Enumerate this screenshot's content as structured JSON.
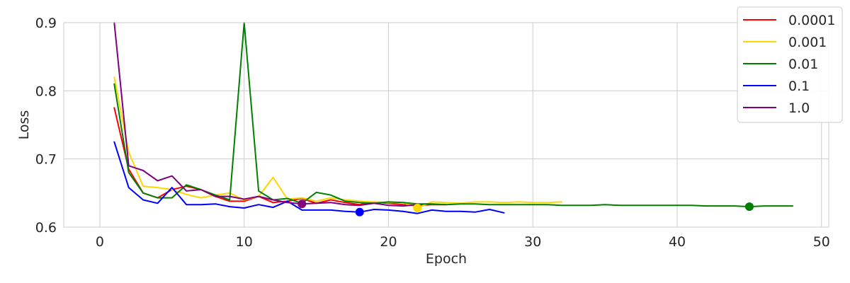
{
  "chart_data": {
    "type": "line",
    "xlabel": "Epoch",
    "ylabel": "Loss",
    "xlim": [
      -2.5,
      50.5
    ],
    "ylim": [
      0.6,
      0.9
    ],
    "xticks": [
      0,
      10,
      20,
      30,
      40,
      50
    ],
    "yticks": [
      0.6,
      0.7,
      0.8,
      0.9
    ],
    "xtick_labels": [
      "0",
      "10",
      "20",
      "30",
      "40",
      "50"
    ],
    "ytick_labels": [
      "0.6",
      "0.7",
      "0.8",
      "0.9"
    ],
    "grid": true,
    "legend_position": "top-right",
    "series": [
      {
        "name": "0.0001",
        "color": "#ff0000",
        "x": [
          1,
          2,
          3,
          4,
          5,
          6,
          7,
          8,
          9,
          10,
          11,
          12,
          13,
          14,
          15,
          16,
          17,
          18,
          19,
          20,
          21,
          22,
          23,
          24
        ],
        "y": [
          0.775,
          0.685,
          0.65,
          0.643,
          0.655,
          0.66,
          0.655,
          0.645,
          0.638,
          0.638,
          0.645,
          0.636,
          0.638,
          0.642,
          0.635,
          0.64,
          0.636,
          0.633,
          0.637,
          0.635,
          0.633,
          0.632,
          0.633,
          0.633
        ],
        "best": null
      },
      {
        "name": "0.001",
        "color": "#ffd700",
        "x": [
          1,
          2,
          3,
          4,
          5,
          6,
          7,
          8,
          9,
          10,
          11,
          12,
          13,
          14,
          15,
          16,
          17,
          18,
          19,
          20,
          21,
          22,
          23,
          24,
          25,
          26,
          27,
          28,
          29,
          30,
          31,
          32
        ],
        "y": [
          0.82,
          0.71,
          0.66,
          0.658,
          0.655,
          0.648,
          0.643,
          0.647,
          0.65,
          0.64,
          0.645,
          0.673,
          0.641,
          0.643,
          0.638,
          0.643,
          0.64,
          0.638,
          0.637,
          0.636,
          0.636,
          0.628,
          0.637,
          0.636,
          0.635,
          0.637,
          0.637,
          0.636,
          0.637,
          0.636,
          0.636,
          0.637
        ],
        "best": [
          22,
          0.628
        ]
      },
      {
        "name": "0.01",
        "color": "#008000",
        "x": [
          1,
          2,
          3,
          4,
          5,
          6,
          7,
          8,
          9,
          10,
          11,
          12,
          13,
          14,
          15,
          16,
          17,
          18,
          19,
          20,
          21,
          22,
          23,
          24,
          25,
          26,
          27,
          28,
          29,
          30,
          31,
          32,
          33,
          34,
          35,
          36,
          37,
          38,
          39,
          40,
          41,
          42,
          43,
          44,
          45,
          46,
          47,
          48
        ],
        "y": [
          0.81,
          0.68,
          0.65,
          0.643,
          0.643,
          0.662,
          0.655,
          0.647,
          0.64,
          0.9,
          0.653,
          0.64,
          0.642,
          0.635,
          0.651,
          0.647,
          0.638,
          0.636,
          0.635,
          0.637,
          0.636,
          0.634,
          0.634,
          0.633,
          0.634,
          0.634,
          0.633,
          0.633,
          0.633,
          0.633,
          0.633,
          0.632,
          0.632,
          0.632,
          0.633,
          0.632,
          0.632,
          0.632,
          0.632,
          0.632,
          0.632,
          0.631,
          0.631,
          0.631,
          0.63,
          0.631,
          0.631,
          0.631
        ],
        "best": [
          45,
          0.63
        ]
      },
      {
        "name": "0.1",
        "color": "#0000ff",
        "x": [
          1,
          2,
          3,
          4,
          5,
          6,
          7,
          8,
          9,
          10,
          11,
          12,
          13,
          14,
          15,
          16,
          17,
          18,
          19,
          20,
          21,
          22,
          23,
          24,
          25,
          26,
          27,
          28
        ],
        "y": [
          0.725,
          0.658,
          0.64,
          0.635,
          0.658,
          0.633,
          0.633,
          0.634,
          0.63,
          0.628,
          0.633,
          0.629,
          0.638,
          0.625,
          0.625,
          0.625,
          0.623,
          0.622,
          0.626,
          0.625,
          0.623,
          0.62,
          0.625,
          0.623,
          0.623,
          0.622,
          0.626,
          0.621
        ],
        "best": [
          18,
          0.622
        ]
      },
      {
        "name": "1.0",
        "color": "#800080",
        "x": [
          1,
          2,
          3,
          4,
          5,
          6,
          7,
          8,
          9,
          10,
          11,
          12,
          13,
          14,
          15,
          16,
          17,
          18,
          19,
          20,
          21,
          22
        ],
        "y": [
          0.9,
          0.69,
          0.683,
          0.668,
          0.675,
          0.653,
          0.655,
          0.645,
          0.645,
          0.641,
          0.645,
          0.64,
          0.636,
          0.634,
          0.635,
          0.636,
          0.633,
          0.632,
          0.635,
          0.632,
          0.631,
          0.633
        ],
        "best": [
          14,
          0.634
        ]
      }
    ]
  }
}
